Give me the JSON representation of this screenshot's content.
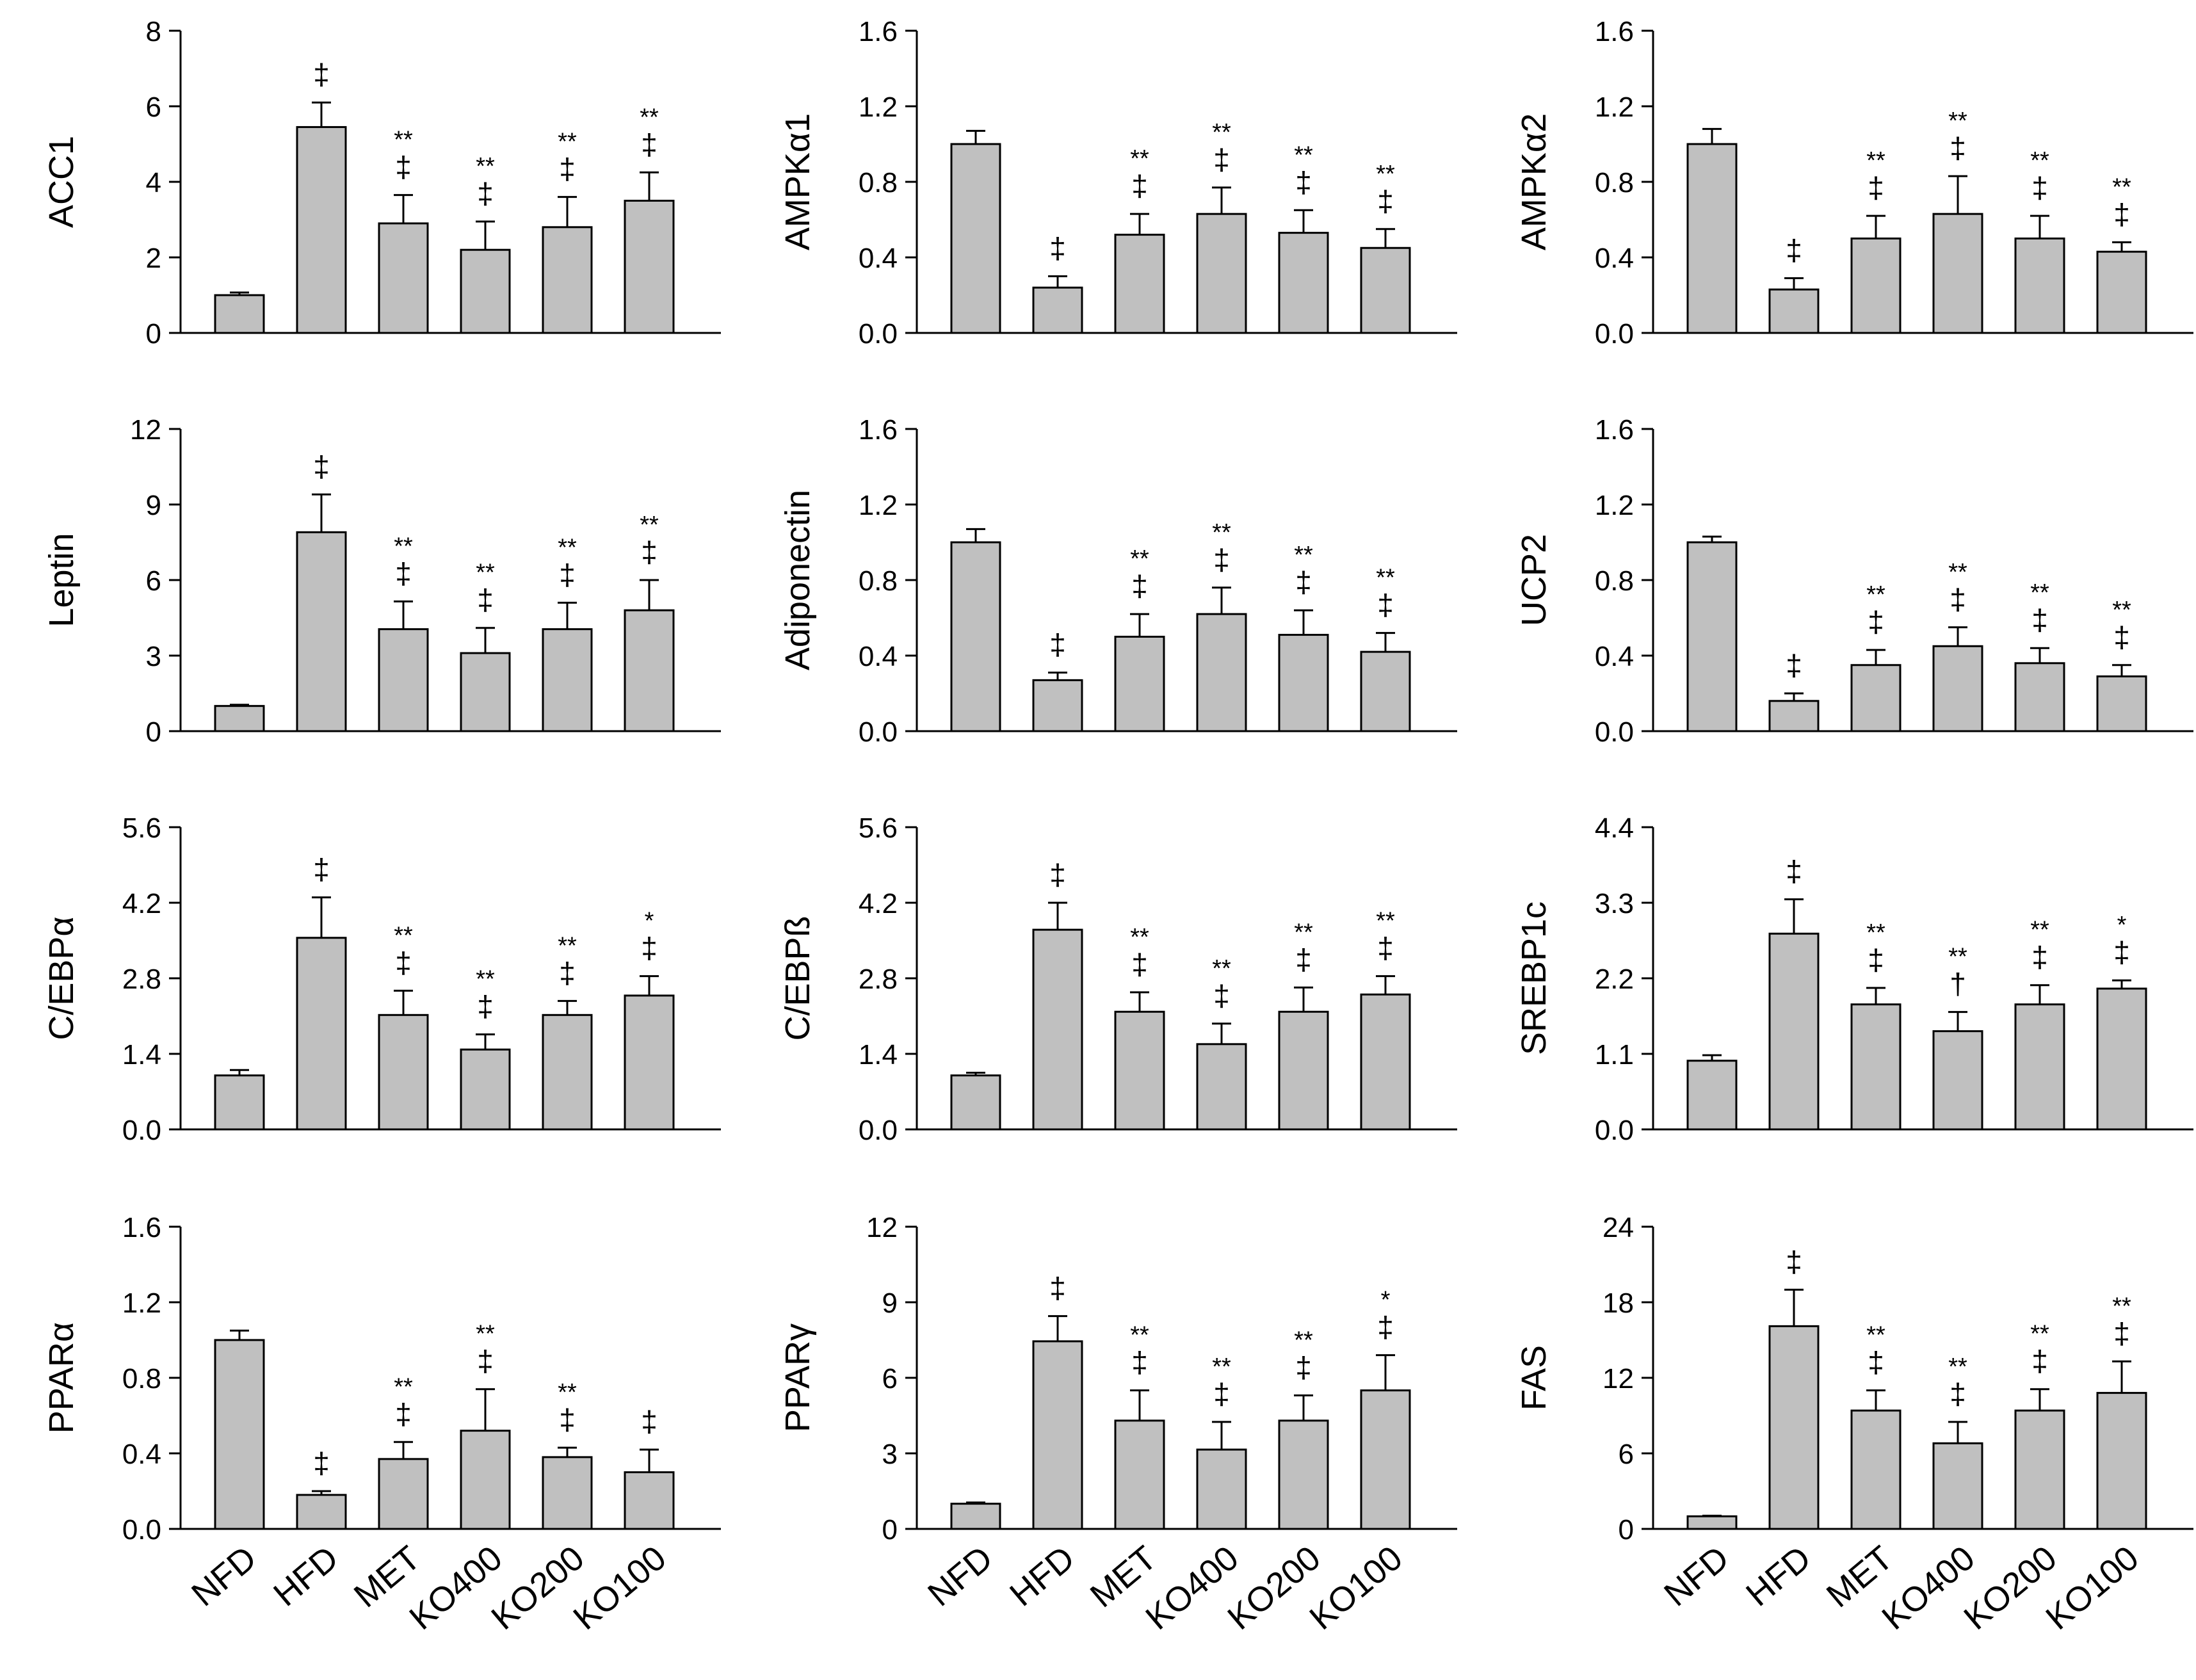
{
  "chart_data": [
    {
      "type": "bar",
      "ylabel": "ACC1",
      "yticks": [
        "0",
        "2",
        "4",
        "6",
        "8"
      ],
      "ylim": [
        0,
        8
      ],
      "categories": [
        "NFD",
        "HFD",
        "MET",
        "KO400",
        "KO200",
        "KO100"
      ],
      "values": [
        1.0,
        5.45,
        2.9,
        2.2,
        2.8,
        3.5
      ],
      "errors": [
        0.07,
        0.65,
        0.75,
        0.75,
        0.8,
        0.75
      ],
      "annotations": [
        [
          "",
          ""
        ],
        [
          "",
          "‡"
        ],
        [
          "**",
          "‡"
        ],
        [
          "**",
          "‡"
        ],
        [
          "**",
          "‡"
        ],
        [
          "**",
          "‡"
        ]
      ]
    },
    {
      "type": "bar",
      "ylabel": "AMPKα1",
      "yticks": [
        "0.0",
        "0.4",
        "0.8",
        "1.2",
        "1.6"
      ],
      "ylim": [
        0,
        1.6
      ],
      "categories": [
        "NFD",
        "HFD",
        "MET",
        "KO400",
        "KO200",
        "KO100"
      ],
      "values": [
        1.0,
        0.24,
        0.52,
        0.63,
        0.53,
        0.45
      ],
      "errors": [
        0.07,
        0.06,
        0.11,
        0.14,
        0.12,
        0.1
      ],
      "annotations": [
        [
          "",
          ""
        ],
        [
          "",
          "‡"
        ],
        [
          "**",
          "‡"
        ],
        [
          "**",
          "‡"
        ],
        [
          "**",
          "‡"
        ],
        [
          "**",
          "‡"
        ]
      ]
    },
    {
      "type": "bar",
      "ylabel": "AMPKα2",
      "yticks": [
        "0.0",
        "0.4",
        "0.8",
        "1.2",
        "1.6"
      ],
      "ylim": [
        0,
        1.6
      ],
      "categories": [
        "NFD",
        "HFD",
        "MET",
        "KO400",
        "KO200",
        "KO100"
      ],
      "values": [
        1.0,
        0.23,
        0.5,
        0.63,
        0.5,
        0.43
      ],
      "errors": [
        0.08,
        0.06,
        0.12,
        0.2,
        0.12,
        0.05
      ],
      "annotations": [
        [
          "",
          ""
        ],
        [
          "",
          "‡"
        ],
        [
          "**",
          "‡"
        ],
        [
          "**",
          "‡"
        ],
        [
          "**",
          "‡"
        ],
        [
          "**",
          "‡"
        ]
      ]
    },
    {
      "type": "bar",
      "ylabel": "Leptin",
      "yticks": [
        "0",
        "3",
        "6",
        "9",
        "12"
      ],
      "ylim": [
        0,
        12
      ],
      "categories": [
        "NFD",
        "HFD",
        "MET",
        "KO400",
        "KO200",
        "KO100"
      ],
      "values": [
        1.0,
        7.9,
        4.05,
        3.1,
        4.05,
        4.8
      ],
      "errors": [
        0.05,
        1.5,
        1.1,
        1.0,
        1.05,
        1.2
      ],
      "annotations": [
        [
          "",
          ""
        ],
        [
          "",
          "‡"
        ],
        [
          "**",
          "‡"
        ],
        [
          "**",
          "‡"
        ],
        [
          "**",
          "‡"
        ],
        [
          "**",
          "‡"
        ]
      ]
    },
    {
      "type": "bar",
      "ylabel": "Adiponectin",
      "yticks": [
        "0.0",
        "0.4",
        "0.8",
        "1.2",
        "1.6"
      ],
      "ylim": [
        0,
        1.6
      ],
      "categories": [
        "NFD",
        "HFD",
        "MET",
        "KO400",
        "KO200",
        "KO100"
      ],
      "values": [
        1.0,
        0.27,
        0.5,
        0.62,
        0.51,
        0.42
      ],
      "errors": [
        0.07,
        0.04,
        0.12,
        0.14,
        0.13,
        0.1
      ],
      "annotations": [
        [
          "",
          ""
        ],
        [
          "",
          "‡"
        ],
        [
          "**",
          "‡"
        ],
        [
          "**",
          "‡"
        ],
        [
          "**",
          "‡"
        ],
        [
          "**",
          "‡"
        ]
      ]
    },
    {
      "type": "bar",
      "ylabel": "UCP2",
      "yticks": [
        "0.0",
        "0.4",
        "0.8",
        "1.2",
        "1.6"
      ],
      "ylim": [
        0,
        1.6
      ],
      "categories": [
        "NFD",
        "HFD",
        "MET",
        "KO400",
        "KO200",
        "KO100"
      ],
      "values": [
        1.0,
        0.16,
        0.35,
        0.45,
        0.36,
        0.29
      ],
      "errors": [
        0.03,
        0.04,
        0.08,
        0.1,
        0.08,
        0.06
      ],
      "annotations": [
        [
          "",
          ""
        ],
        [
          "",
          "‡"
        ],
        [
          "**",
          "‡"
        ],
        [
          "**",
          "‡"
        ],
        [
          "**",
          "‡"
        ],
        [
          "**",
          "‡"
        ]
      ]
    },
    {
      "type": "bar",
      "ylabel": "C/EBPα",
      "yticks": [
        "0.0",
        "1.4",
        "2.8",
        "4.2",
        "5.6"
      ],
      "ylim": [
        0,
        5.6
      ],
      "categories": [
        "NFD",
        "HFD",
        "MET",
        "KO400",
        "KO200",
        "KO100"
      ],
      "values": [
        1.0,
        3.55,
        2.12,
        1.48,
        2.12,
        2.48
      ],
      "errors": [
        0.1,
        0.75,
        0.45,
        0.28,
        0.26,
        0.36
      ],
      "annotations": [
        [
          "",
          ""
        ],
        [
          "",
          "‡"
        ],
        [
          "**",
          "‡"
        ],
        [
          "**",
          "‡"
        ],
        [
          "**",
          "‡"
        ],
        [
          "*",
          "‡"
        ]
      ]
    },
    {
      "type": "bar",
      "ylabel": "C/EBPß",
      "yticks": [
        "0.0",
        "1.4",
        "2.8",
        "4.2",
        "5.6"
      ],
      "ylim": [
        0,
        5.6
      ],
      "categories": [
        "NFD",
        "HFD",
        "MET",
        "KO400",
        "KO200",
        "KO100"
      ],
      "values": [
        1.0,
        3.7,
        2.18,
        1.58,
        2.18,
        2.5
      ],
      "errors": [
        0.05,
        0.5,
        0.36,
        0.38,
        0.45,
        0.34
      ],
      "annotations": [
        [
          "",
          ""
        ],
        [
          "",
          "‡"
        ],
        [
          "**",
          "‡"
        ],
        [
          "**",
          "‡"
        ],
        [
          "**",
          "‡"
        ],
        [
          "**",
          "‡"
        ]
      ]
    },
    {
      "type": "bar",
      "ylabel": "SREBP1c",
      "yticks": [
        "0.0",
        "1.1",
        "2.2",
        "3.3",
        "4.4"
      ],
      "ylim": [
        0,
        4.4
      ],
      "categories": [
        "NFD",
        "HFD",
        "MET",
        "KO400",
        "KO200",
        "KO100"
      ],
      "values": [
        1.0,
        2.85,
        1.82,
        1.43,
        1.82,
        2.05
      ],
      "errors": [
        0.08,
        0.5,
        0.24,
        0.28,
        0.28,
        0.12
      ],
      "annotations": [
        [
          "",
          ""
        ],
        [
          "",
          "‡"
        ],
        [
          "**",
          "‡"
        ],
        [
          "**",
          "†"
        ],
        [
          "**",
          "‡"
        ],
        [
          "*",
          "‡"
        ]
      ]
    },
    {
      "type": "bar",
      "ylabel": "PPARα",
      "yticks": [
        "0.0",
        "0.4",
        "0.8",
        "1.2",
        "1.6"
      ],
      "ylim": [
        0,
        1.6
      ],
      "categories": [
        "NFD",
        "HFD",
        "MET",
        "KO400",
        "KO200",
        "KO100"
      ],
      "values": [
        1.0,
        0.18,
        0.37,
        0.52,
        0.38,
        0.3
      ],
      "errors": [
        0.05,
        0.02,
        0.09,
        0.22,
        0.05,
        0.12
      ],
      "annotations": [
        [
          "",
          ""
        ],
        [
          "",
          "‡"
        ],
        [
          "**",
          "‡"
        ],
        [
          "**",
          "‡"
        ],
        [
          "**",
          "‡"
        ],
        [
          "",
          "‡"
        ]
      ]
    },
    {
      "type": "bar",
      "ylabel": "PPARγ",
      "yticks": [
        "0",
        "3",
        "6",
        "9",
        "12"
      ],
      "ylim": [
        0,
        12
      ],
      "categories": [
        "NFD",
        "HFD",
        "MET",
        "KO400",
        "KO200",
        "KO100"
      ],
      "values": [
        1.0,
        7.45,
        4.3,
        3.15,
        4.3,
        5.5
      ],
      "errors": [
        0.05,
        1.0,
        1.2,
        1.1,
        1.0,
        1.4
      ],
      "annotations": [
        [
          "",
          ""
        ],
        [
          "",
          "‡"
        ],
        [
          "**",
          "‡"
        ],
        [
          "**",
          "‡"
        ],
        [
          "**",
          "‡"
        ],
        [
          "*",
          "‡"
        ]
      ]
    },
    {
      "type": "bar",
      "ylabel": "FAS",
      "yticks": [
        "0",
        "6",
        "12",
        "18",
        "24"
      ],
      "ylim": [
        0,
        24
      ],
      "categories": [
        "NFD",
        "HFD",
        "MET",
        "KO400",
        "KO200",
        "KO100"
      ],
      "values": [
        1.0,
        16.1,
        9.4,
        6.8,
        9.4,
        10.8
      ],
      "errors": [
        0.05,
        2.9,
        1.6,
        1.7,
        1.7,
        2.5
      ],
      "annotations": [
        [
          "",
          ""
        ],
        [
          "",
          "‡"
        ],
        [
          "**",
          "‡"
        ],
        [
          "**",
          "‡"
        ],
        [
          "**",
          "‡"
        ],
        [
          "**",
          "‡"
        ]
      ]
    }
  ]
}
